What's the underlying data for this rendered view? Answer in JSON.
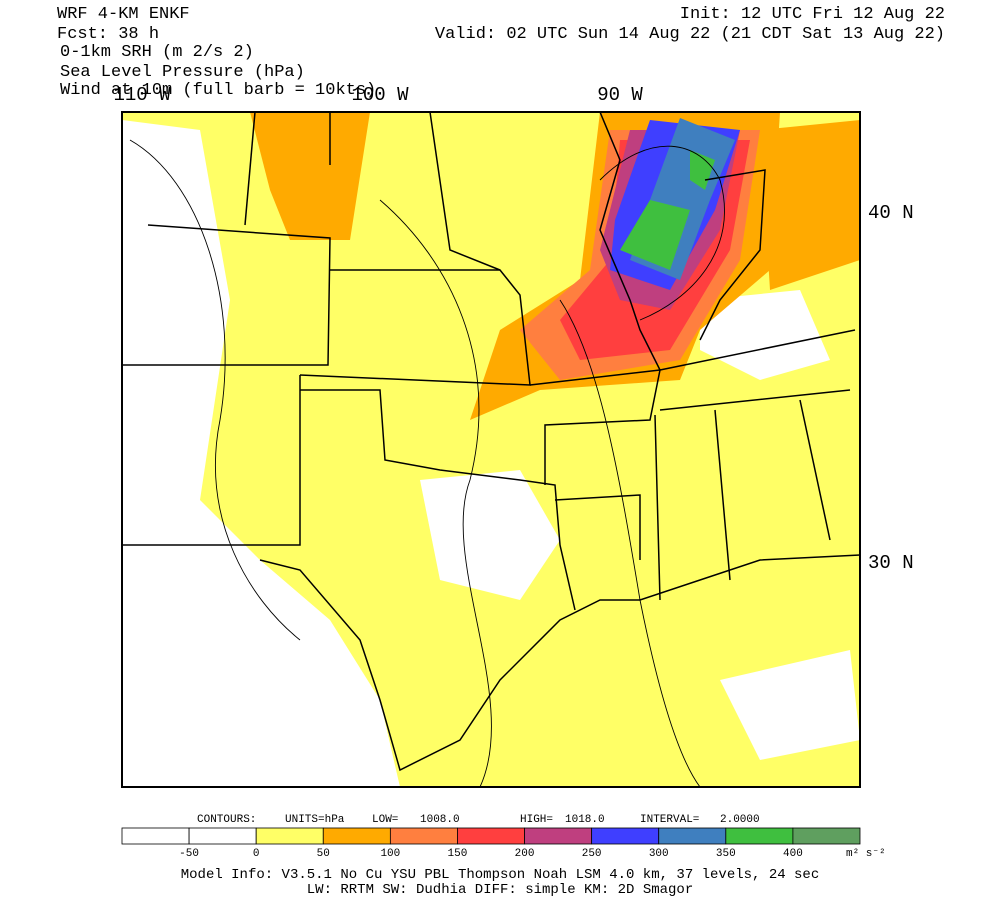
{
  "header": {
    "left": [
      "WRF 4-KM ENKF",
      "Fcst:   38 h",
      "0-1km SRH (m 2/s 2)",
      "Sea Level Pressure (hPa)",
      "Wind at 10m (full barb = 10kts)"
    ],
    "right": [
      "Init: 12 UTC Fri 12 Aug 22",
      "Valid: 02 UTC Sun 14 Aug 22 (21 CDT Sat 13 Aug 22)"
    ]
  },
  "map": {
    "longitudes": [
      "110 W",
      "100 W",
      "90 W"
    ],
    "latitudes": [
      "40 N",
      "30 N"
    ]
  },
  "contours": {
    "label": "CONTOURS:",
    "units": "UNITS=hPa",
    "low_label": "LOW=",
    "low": "1008.0",
    "high_label": "HIGH=",
    "high": "1018.0",
    "interval_label": "INTERVAL=",
    "interval": "2.0000"
  },
  "colorbar": {
    "colors": [
      "#ffffff",
      "#ffffff",
      "#ffff66",
      "#ffaa00",
      "#ff7f3f",
      "#ff3f3f",
      "#bf3f7f",
      "#3f3fff",
      "#3f7fbf",
      "#3fbf3f",
      "#5f9f5f"
    ],
    "labels": [
      -50,
      0,
      50,
      100,
      150,
      200,
      250,
      300,
      350,
      400
    ],
    "units": "m² s⁻²"
  },
  "footer": [
    "Model Info: V3.5.1    No Cu    YSU PBL   Thompson      Noah LSM  4.0 km,  37 levels,   24 sec",
    "LW: RRTM SW: Dudhia  DIFF: simple KM: 2D Smagor"
  ]
}
